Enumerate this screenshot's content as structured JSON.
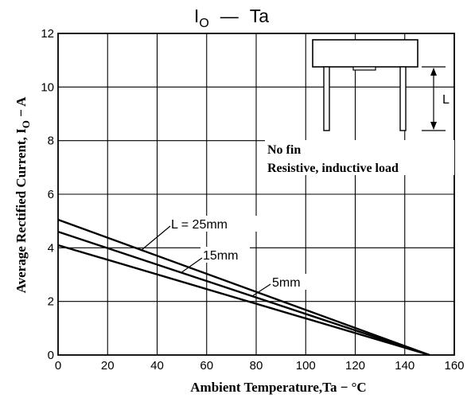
{
  "chart_data": {
    "type": "line",
    "title_main": "I",
    "title_sub": "O",
    "title_dash": "—",
    "title_rest": "Ta",
    "xlabel": "Ambient Temperature,Ta − °C",
    "ylabel_main": "Average Rectified Current, I",
    "ylabel_sub": "O",
    "ylabel_rest": " − A",
    "xlim": [
      0,
      160
    ],
    "ylim": [
      0,
      12
    ],
    "xticks": [
      "0",
      "20",
      "40",
      "60",
      "80",
      "100",
      "120",
      "140",
      "160"
    ],
    "yticks": [
      "0",
      "2",
      "4",
      "6",
      "8",
      "10",
      "12"
    ],
    "grid": true,
    "series": [
      {
        "name": "L = 25mm",
        "x": [
          0,
          150
        ],
        "y": [
          5.05,
          0
        ]
      },
      {
        "name": "15mm",
        "x": [
          0,
          150
        ],
        "y": [
          4.6,
          0
        ]
      },
      {
        "name": "5mm",
        "x": [
          0,
          150
        ],
        "y": [
          4.1,
          0
        ]
      }
    ],
    "annotations": {
      "note_line1": "No fin",
      "note_line2": "Resistive, inductive load",
      "dimension_label": "L"
    },
    "line_color": "#000000"
  }
}
